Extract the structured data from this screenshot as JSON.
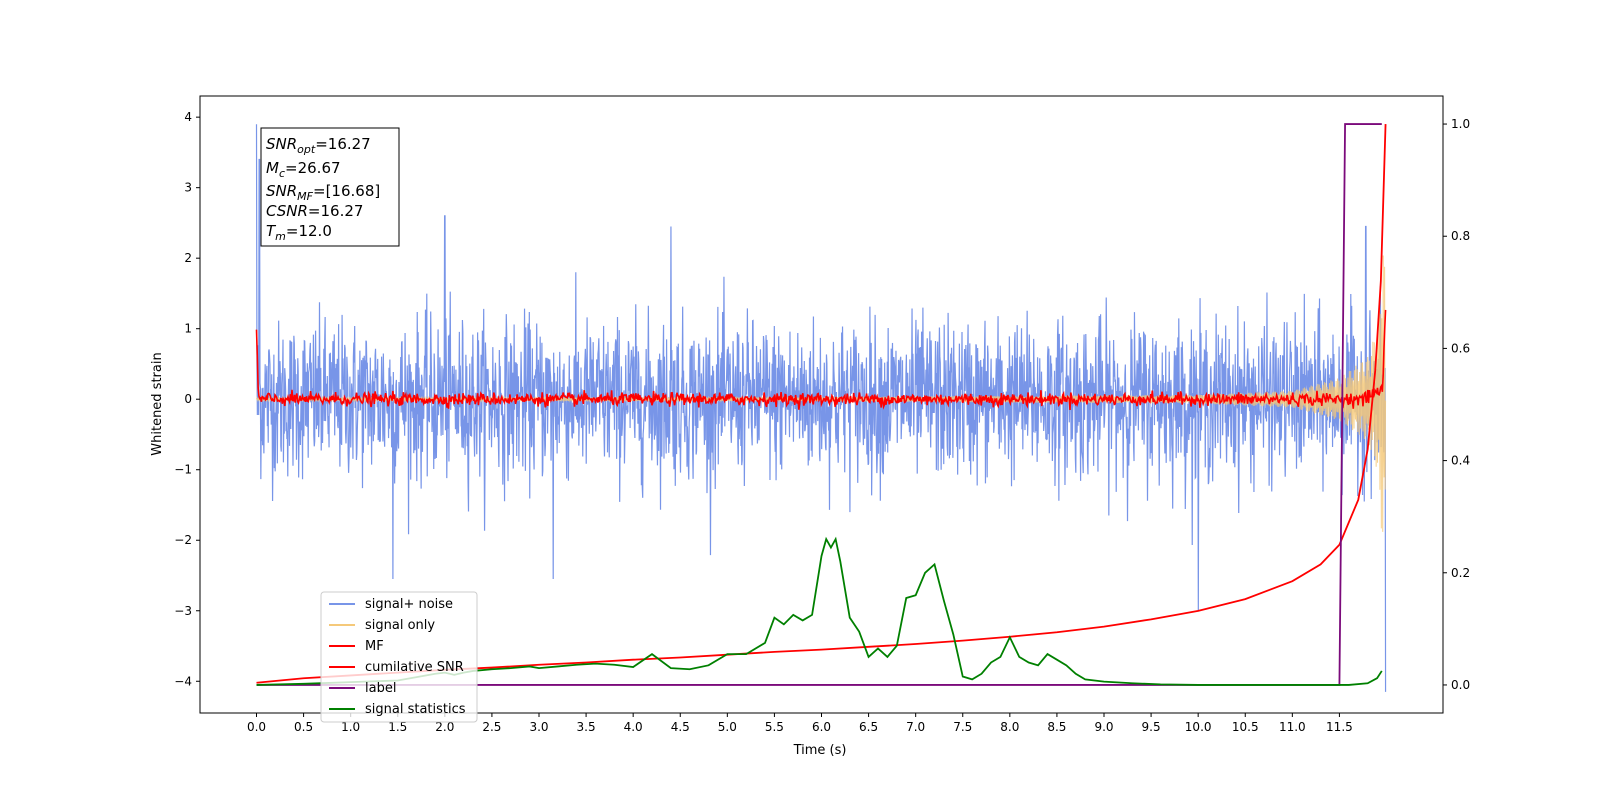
{
  "chart_data": {
    "type": "line",
    "xlabel": "Time (s)",
    "ylabel": "Whitened strain",
    "xlim": [
      -0.6,
      12.6
    ],
    "ylim_left": [
      -4.45,
      4.3
    ],
    "ylim_right": [
      -0.05,
      1.05
    ],
    "x_ticks": [
      0.0,
      0.5,
      1.0,
      1.5,
      2.0,
      2.5,
      3.0,
      3.5,
      4.0,
      4.5,
      5.0,
      5.5,
      6.0,
      6.5,
      7.0,
      7.5,
      8.0,
      8.5,
      9.0,
      9.5,
      10.0,
      10.5,
      11.0,
      11.5
    ],
    "x_tick_labels": [
      "0.0",
      "0.5",
      "1.0",
      "1.5",
      "2.0",
      "2.5",
      "3.0",
      "3.5",
      "4.0",
      "4.5",
      "5.0",
      "5.5",
      "6.0",
      "6.5",
      "7.0",
      "7.5",
      "8.0",
      "8.5",
      "9.0",
      "9.5",
      "10.0",
      "10.5",
      "11.0",
      "11.5"
    ],
    "y_ticks_left": [
      4,
      3,
      2,
      1,
      0,
      -1,
      -2,
      -3,
      -4
    ],
    "y_tick_labels_left": [
      "4",
      "3",
      "2",
      "1",
      "0",
      "−1",
      "−2",
      "−3",
      "−4"
    ],
    "y_ticks_right": [
      1.0,
      0.8,
      0.6,
      0.4,
      0.2,
      0.0
    ],
    "y_tick_labels_right": [
      "1.0",
      "0.8",
      "0.6",
      "0.4",
      "0.2",
      "0.0"
    ],
    "grid": false,
    "legend_position": "lower-left",
    "annotation": {
      "lines": [
        {
          "sym": "SNR",
          "sub": "opt",
          "rest": "=16.27"
        },
        {
          "sym": "M",
          "sub": "c",
          "rest": "=26.67"
        },
        {
          "sym": "SNR",
          "sub": "MF",
          "rest": "=[16.68]"
        },
        {
          "sym": "CSNR",
          "sub": "",
          "rest": "=16.27"
        },
        {
          "sym": "T",
          "sub": "m",
          "rest": "=12.0"
        }
      ]
    },
    "series": [
      {
        "name": "signal+ noise",
        "color": "#7895e8",
        "axis": "left",
        "x_range": [
          0.0,
          11.99
        ],
        "approx_std": 0.55,
        "extremes": [
          [
            0.0,
            3.9
          ],
          [
            0.03,
            3.4
          ],
          [
            2.0,
            2.6
          ],
          [
            4.4,
            2.45
          ],
          [
            11.78,
            2.45
          ],
          [
            1.45,
            -2.55
          ],
          [
            3.15,
            -2.55
          ],
          [
            10.0,
            -3.0
          ],
          [
            11.99,
            -4.15
          ]
        ]
      },
      {
        "name": "signal only",
        "color": "#f5c97a",
        "axis": "left",
        "x_range": [
          0.0,
          11.99
        ],
        "envelope": [
          [
            0.0,
            0.02
          ],
          [
            6.0,
            0.03
          ],
          [
            10.0,
            0.06
          ],
          [
            11.0,
            0.12
          ],
          [
            11.5,
            0.3
          ],
          [
            11.8,
            0.6
          ],
          [
            11.9,
            1.0
          ],
          [
            11.97,
            2.3
          ],
          [
            11.99,
            1.5
          ]
        ]
      },
      {
        "name": "MF",
        "color": "#ff0000",
        "axis": "left",
        "x_range": [
          0.0,
          11.99
        ],
        "start": [
          0.0,
          1.0
        ],
        "noise_std": 0.045,
        "tail": [
          [
            11.8,
            0.05
          ],
          [
            11.9,
            0.1
          ],
          [
            11.96,
            0.15
          ],
          [
            11.99,
            1.3
          ]
        ]
      },
      {
        "name": "cumilative SNR",
        "color": "#ff0000",
        "axis": "right",
        "x": [
          0.0,
          0.5,
          1.0,
          1.5,
          2.0,
          2.5,
          3.0,
          3.5,
          4.0,
          4.5,
          5.0,
          5.5,
          6.0,
          6.5,
          7.0,
          7.5,
          8.0,
          8.5,
          9.0,
          9.5,
          10.0,
          10.5,
          11.0,
          11.3,
          11.5,
          11.7,
          11.8,
          11.88,
          11.94,
          11.99
        ],
        "values": [
          0.004,
          0.012,
          0.017,
          0.022,
          0.027,
          0.031,
          0.036,
          0.04,
          0.045,
          0.049,
          0.054,
          0.059,
          0.063,
          0.068,
          0.073,
          0.079,
          0.086,
          0.094,
          0.104,
          0.117,
          0.132,
          0.153,
          0.185,
          0.215,
          0.25,
          0.33,
          0.42,
          0.56,
          0.72,
          1.0
        ]
      },
      {
        "name": "label",
        "color": "#7b0a7b",
        "axis": "right",
        "x": [
          0.0,
          11.5,
          11.56,
          11.95
        ],
        "values": [
          0.0,
          0.0,
          1.0,
          1.0
        ]
      },
      {
        "name": "signal statistics",
        "color": "#008000",
        "axis": "right",
        "x": [
          0.0,
          0.5,
          1.0,
          1.5,
          1.9,
          2.0,
          2.1,
          2.2,
          2.3,
          2.5,
          2.7,
          2.9,
          3.0,
          3.2,
          3.4,
          3.6,
          3.8,
          4.0,
          4.2,
          4.4,
          4.6,
          4.8,
          5.0,
          5.2,
          5.4,
          5.5,
          5.6,
          5.7,
          5.8,
          5.9,
          6.0,
          6.05,
          6.1,
          6.15,
          6.2,
          6.3,
          6.4,
          6.5,
          6.6,
          6.7,
          6.8,
          6.9,
          7.0,
          7.1,
          7.2,
          7.3,
          7.4,
          7.5,
          7.6,
          7.7,
          7.8,
          7.9,
          8.0,
          8.1,
          8.2,
          8.3,
          8.4,
          8.5,
          8.6,
          8.7,
          8.8,
          9.0,
          9.3,
          9.6,
          10.0,
          11.0,
          11.6,
          11.8,
          11.9,
          11.95
        ],
        "values": [
          0.0,
          0.002,
          0.005,
          0.008,
          0.02,
          0.022,
          0.018,
          0.022,
          0.025,
          0.028,
          0.03,
          0.033,
          0.03,
          0.033,
          0.036,
          0.038,
          0.036,
          0.032,
          0.055,
          0.03,
          0.028,
          0.035,
          0.055,
          0.055,
          0.075,
          0.12,
          0.108,
          0.125,
          0.115,
          0.125,
          0.23,
          0.26,
          0.245,
          0.26,
          0.22,
          0.12,
          0.095,
          0.05,
          0.065,
          0.05,
          0.07,
          0.155,
          0.16,
          0.2,
          0.215,
          0.15,
          0.09,
          0.015,
          0.01,
          0.02,
          0.04,
          0.05,
          0.085,
          0.05,
          0.04,
          0.035,
          0.055,
          0.045,
          0.035,
          0.02,
          0.01,
          0.006,
          0.003,
          0.001,
          0.0,
          0.0,
          0.0,
          0.003,
          0.012,
          0.025
        ]
      }
    ]
  }
}
